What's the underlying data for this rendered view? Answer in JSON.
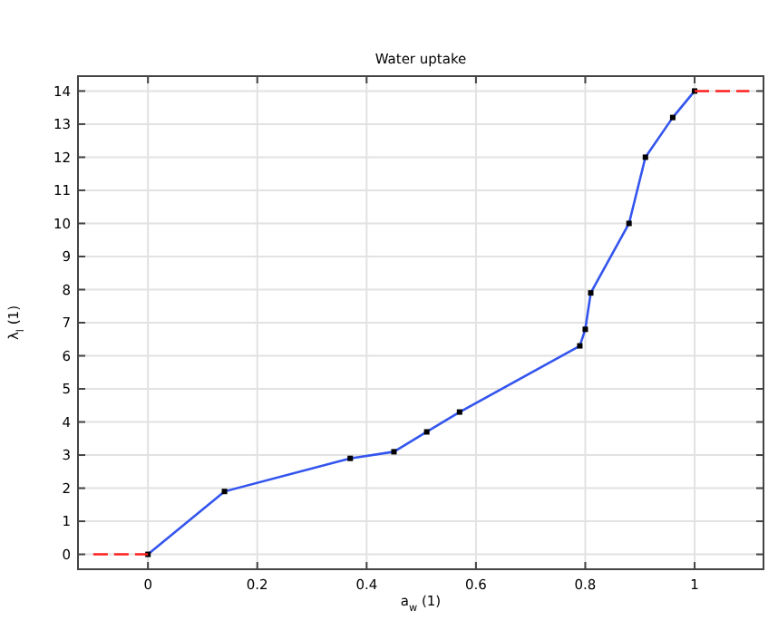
{
  "chart_data": {
    "type": "line",
    "title": "Water uptake",
    "xlabel": "a$_{w}$ (1)",
    "ylabel": "λ$_{l}$ (1)",
    "xlim": [
      -0.128,
      1.126
    ],
    "ylim": [
      -0.45,
      14.45
    ],
    "xticks": [
      0,
      0.2,
      0.4,
      0.6,
      0.8,
      1
    ],
    "yticks": [
      0,
      1,
      2,
      3,
      4,
      5,
      6,
      7,
      8,
      9,
      10,
      11,
      12,
      13,
      14
    ],
    "grid": true,
    "series": [
      {
        "color": "#3355ee",
        "marker": "square",
        "line_style": "solid",
        "x": [
          0,
          0.14,
          0.37,
          0.45,
          0.51,
          0.57,
          0.79,
          0.8,
          0.81,
          0.88,
          0.91,
          0.96,
          1
        ],
        "values": [
          0,
          1.9,
          2.9,
          3.1,
          3.7,
          4.3,
          6.3,
          6.8,
          7.9,
          10,
          12,
          13.2,
          14
        ]
      },
      {
        "color": "#ff2020",
        "marker": "none",
        "line_style": "dashed",
        "x": [
          -0.1,
          0
        ],
        "values": [
          0,
          0
        ]
      },
      {
        "color": "#ff2020",
        "marker": "none",
        "line_style": "dashed",
        "x": [
          1,
          1.1
        ],
        "values": [
          14,
          14
        ]
      }
    ]
  }
}
